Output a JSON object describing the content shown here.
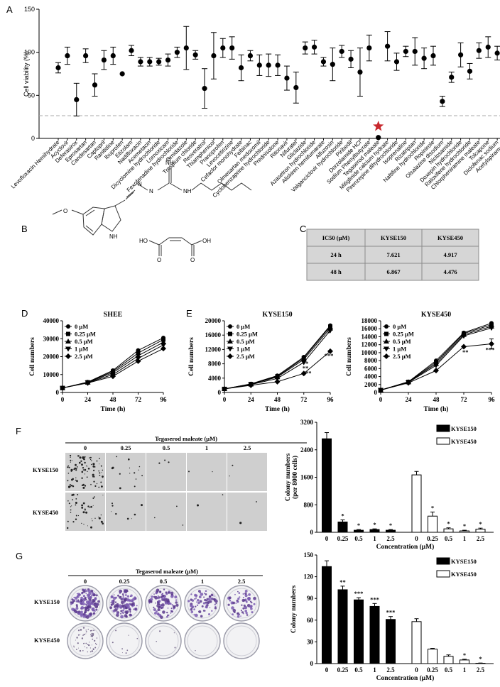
{
  "panels": {
    "A": "A",
    "B": "B",
    "C": "C",
    "D": "D",
    "E": "E",
    "F": "F",
    "G": "G"
  },
  "panel_a": {
    "ylabel": "Cell viability (%)",
    "yticks": [
      0,
      50,
      100,
      150
    ],
    "drugs": [
      "Levofloxacin Hemihydrate",
      "Acyclovir",
      "Deferasirox",
      "Eprosartan",
      "Candesartan",
      "Captopril",
      "Ranitidine",
      "Ibuprofen",
      "Etizolam",
      "Nadifloxacin",
      "Acemetacin",
      "Dicyclomine hydrochloride",
      "Lornoxicam",
      "Fexofenadine hydrochloride",
      "Ornidazole",
      "Trospium chloride",
      "Resveratrol",
      "Thiamphenicol",
      "Pranoprofen",
      "Levocetirizine",
      "Cefaclor monohydrate",
      "Felbinac",
      "Olmesartan medoxomil",
      "Cyclobenzaprine hydrochloride",
      "Prednisolone",
      "Ritonavir",
      "Nifuratel",
      "Gliclazide",
      "Azasetron hydrochloride",
      "Aliskiren hemifumarate",
      "Alfuzosin",
      "Valganciclovir hydrochloride",
      "Piribedil",
      "Dorzolamide HCl",
      "Sodium Phenylbutyrate",
      "Tegaserod maleate",
      "Mitiglinide calcium hydrate",
      "Pirenzepine dihydrochloride",
      "Isoprenaline",
      "Rizatriptan",
      "Naftifine hydrochloride",
      "Ropinirole",
      "Olsalazine disodium",
      "Niclosamide",
      "Doxepin hydrochloride",
      "Raloxifene hydrochloride",
      "Chlorpheniramine maleate",
      "Tolcapone",
      "Diclofenac sodium",
      "Acetylspiramycin"
    ],
    "mean": [
      82,
      96,
      45,
      96,
      62,
      91,
      96,
      75,
      102,
      89,
      89,
      89,
      91,
      100,
      105,
      97,
      58,
      96,
      105,
      105,
      82,
      96,
      85,
      85,
      85,
      70,
      59,
      105,
      106,
      89,
      86,
      101,
      92,
      77,
      105,
      1,
      107,
      89,
      101,
      101,
      93,
      96,
      43,
      71,
      97,
      78,
      102,
      106,
      99,
      96
    ],
    "err": [
      6,
      10,
      19,
      8,
      13,
      11,
      10,
      0,
      6,
      5,
      5,
      4,
      7,
      6,
      25,
      5,
      23,
      27,
      11,
      13,
      15,
      6,
      12,
      13,
      12,
      14,
      18,
      7,
      8,
      5,
      19,
      7,
      10,
      28,
      15,
      0,
      17,
      10,
      6,
      16,
      12,
      11,
      6,
      6,
      14,
      9,
      9,
      12,
      8,
      20
    ]
  },
  "panel_b": {
    "labels": [
      "NH",
      "H",
      "N",
      "N",
      "NH",
      "O",
      "HO",
      "OH",
      "O",
      "O",
      "O"
    ]
  },
  "panel_c": {
    "header": [
      "IC50 (μM)",
      "KYSE150",
      "KYSE450"
    ],
    "rows": [
      [
        "24 h",
        "7.621",
        "4.917"
      ],
      [
        "48 h",
        "6.867",
        "4.476"
      ]
    ]
  },
  "growth": {
    "xlabel": "Time (h)",
    "ylabel": "Cell numbers",
    "xticks": [
      0,
      24,
      48,
      72,
      96
    ],
    "legend": [
      "0 μM",
      "0.25 μM",
      "0.5 μM",
      "1 μM",
      "2.5 μM"
    ],
    "charts": [
      {
        "title": "SHEE",
        "yticks": [
          0,
          10000,
          20000,
          30000,
          40000
        ],
        "series": [
          [
            2500,
            5800,
            12300,
            23500,
            30500
          ],
          [
            2500,
            5700,
            11700,
            22000,
            29500
          ],
          [
            2500,
            5600,
            11000,
            20500,
            28000
          ],
          [
            2500,
            5500,
            10000,
            19000,
            26500
          ],
          [
            2500,
            5300,
            9000,
            17500,
            24500
          ]
        ],
        "sig": []
      },
      {
        "title": "KYSE150",
        "yticks": [
          0,
          4000,
          8000,
          12000,
          16000,
          20000
        ],
        "series": [
          [
            1000,
            2400,
            4700,
            9900,
            18700
          ],
          [
            1000,
            2350,
            4500,
            9600,
            18400
          ],
          [
            1000,
            2300,
            4300,
            9200,
            17900
          ],
          [
            1000,
            2200,
            3900,
            8400,
            17300
          ],
          [
            1000,
            2000,
            3000,
            5300,
            11500
          ]
        ],
        "sig": [
          {
            "x": 72,
            "y": 9500,
            "t": "*"
          },
          {
            "x": 72,
            "y": 8300,
            "t": "**"
          },
          {
            "x": 72,
            "y": 7000,
            "t": "**"
          },
          {
            "x": 72,
            "y": 5600,
            "t": "***"
          },
          {
            "x": 96,
            "y": 16800,
            "t": "*"
          },
          {
            "x": 96,
            "y": 10500,
            "t": "***"
          }
        ]
      },
      {
        "title": "KYSE450",
        "yticks": [
          0,
          2000,
          4000,
          6000,
          8000,
          10000,
          12000,
          14000,
          16000,
          18000
        ],
        "series": [
          [
            600,
            2700,
            8000,
            15000,
            17400
          ],
          [
            600,
            2650,
            7600,
            14800,
            17000
          ],
          [
            600,
            2600,
            7200,
            14500,
            16600
          ],
          [
            600,
            2500,
            6800,
            14200,
            16200
          ],
          [
            600,
            2400,
            5500,
            11500,
            12200
          ]
        ],
        "sig": [
          {
            "x": 72,
            "y": 10300,
            "t": "**"
          },
          {
            "x": 96,
            "y": 11000,
            "t": "***"
          }
        ]
      }
    ]
  },
  "panel_f": {
    "treat": "Tegaserod maleate (μM)",
    "doses": [
      "0",
      "0.25",
      "0.5",
      "1",
      "2.5"
    ],
    "rows": [
      "KYSE150",
      "KYSE450"
    ],
    "chart": {
      "ylabel": "Colony numbers",
      "ylabel2": "(per 8000 cells)",
      "xlabel": "Concentration (μM)",
      "yticks": [
        0,
        800,
        1600,
        2400,
        3200
      ],
      "legend": [
        "KYSE150",
        "KYSE450"
      ],
      "k150": [
        2720,
        300,
        60,
        80,
        60
      ],
      "k150err": [
        180,
        60,
        20,
        20,
        20
      ],
      "k450": [
        1670,
        470,
        100,
        40,
        90
      ],
      "k450err": [
        100,
        120,
        30,
        20,
        30
      ],
      "sig150": [
        "",
        "*",
        "*",
        "*",
        "*"
      ],
      "sig450": [
        "",
        "*",
        "*",
        "*",
        "*"
      ]
    }
  },
  "panel_g": {
    "treat": "Tegaserod maleate (μM)",
    "doses": [
      "0",
      "0.25",
      "0.5",
      "1",
      "2.5"
    ],
    "rows": [
      "KYSE150",
      "KYSE450"
    ],
    "chart": {
      "ylabel": "Colony numbers",
      "xlabel": "Concentration (μM)",
      "yticks": [
        0,
        30,
        60,
        90,
        120,
        150
      ],
      "legend": [
        "KYSE150",
        "KYSE450"
      ],
      "k150": [
        134,
        102,
        88,
        79,
        61
      ],
      "k150err": [
        8,
        5,
        3,
        4,
        4
      ],
      "k450": [
        58,
        20,
        10,
        5,
        0.5
      ],
      "k450err": [
        4,
        1,
        2,
        1,
        0.3
      ],
      "sig150": [
        "",
        "**",
        "***",
        "***",
        "***"
      ],
      "sig450": [
        "",
        "",
        "",
        "*",
        "*"
      ]
    }
  }
}
